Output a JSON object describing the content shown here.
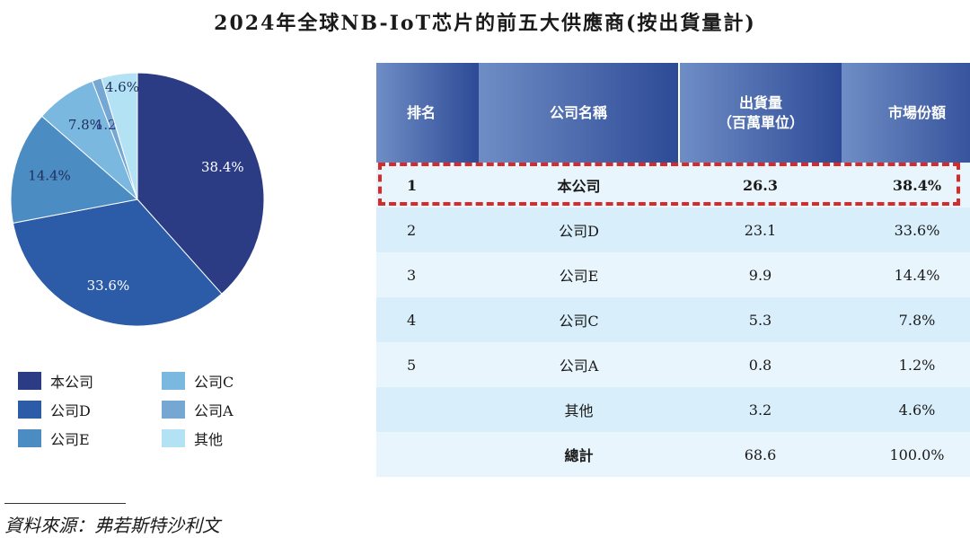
{
  "title": "2024年全球NB-IoT芯片的前五大供應商(按出貨量計)",
  "source": "資料來源：弗若斯特沙利文",
  "table": {
    "headers": {
      "rank": "排名",
      "company": "公司名稱",
      "shipment_line1": "出貨量",
      "shipment_line2": "（百萬單位）",
      "share": "市場份額"
    },
    "rows": [
      {
        "rank": "1",
        "company": "本公司",
        "shipment": "26.3",
        "share": "38.4%"
      },
      {
        "rank": "2",
        "company": "公司D",
        "shipment": "23.1",
        "share": "33.6%"
      },
      {
        "rank": "3",
        "company": "公司E",
        "shipment": "9.9",
        "share": "14.4%"
      },
      {
        "rank": "4",
        "company": "公司C",
        "shipment": "5.3",
        "share": "7.8%"
      },
      {
        "rank": "5",
        "company": "公司A",
        "shipment": "0.8",
        "share": "1.2%"
      },
      {
        "rank": "",
        "company": "其他",
        "shipment": "3.2",
        "share": "4.6%"
      },
      {
        "rank": "",
        "company": "總計",
        "shipment": "68.6",
        "share": "100.0%"
      }
    ]
  },
  "chart_data": {
    "type": "pie",
    "title": "",
    "legend_placement": "bottom",
    "slices": [
      {
        "name": "本公司",
        "value": 38.4,
        "label": "38.4%",
        "color": "#2b3c85"
      },
      {
        "name": "公司D",
        "value": 33.6,
        "label": "33.6%",
        "color": "#2c5ca8"
      },
      {
        "name": "公司E",
        "value": 14.4,
        "label": "14.4%",
        "color": "#4b8cc2"
      },
      {
        "name": "公司C",
        "value": 7.8,
        "label": "7.8%",
        "color": "#7ab8e0"
      },
      {
        "name": "公司A",
        "value": 1.2,
        "label": "1.2%",
        "color": "#76a6d2"
      },
      {
        "name": "其他",
        "value": 4.6,
        "label": "4.6%",
        "color": "#b3e2f5"
      }
    ],
    "legend_order": [
      "本公司",
      "公司D",
      "公司E",
      "公司C",
      "公司A",
      "其他"
    ]
  }
}
